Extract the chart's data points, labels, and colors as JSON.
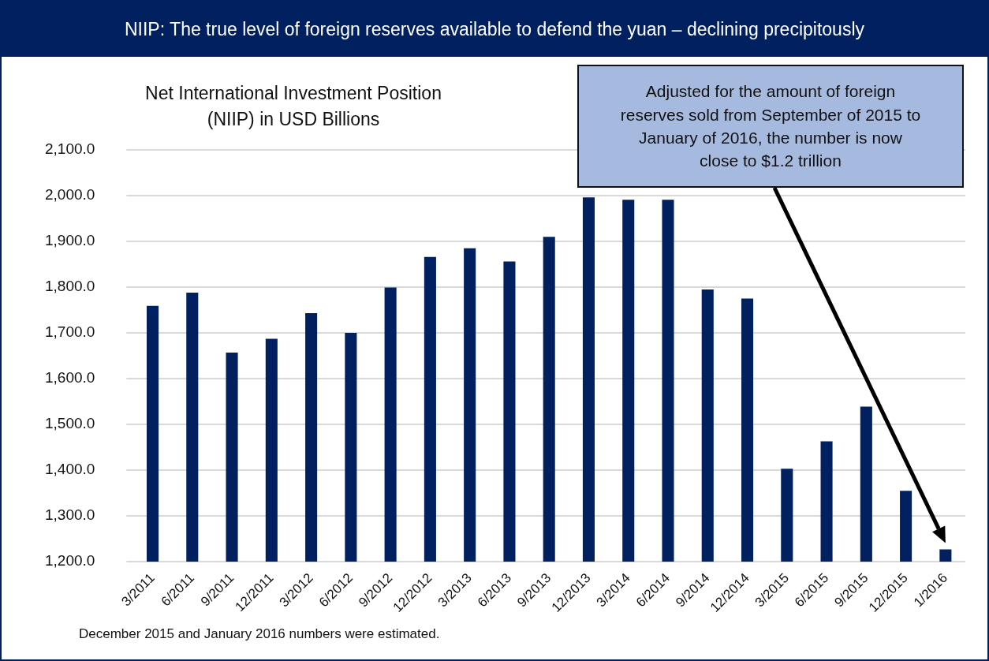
{
  "chart_data": {
    "type": "bar",
    "title": "NIIP: The true level of foreign reserves available to defend the yuan – declining precipitously",
    "subtitle": "Net International Investment Position (NIIP) in USD Billions",
    "categories": [
      "3/2011",
      "6/2011",
      "9/2011",
      "12/2011",
      "3/2012",
      "6/2012",
      "9/2012",
      "12/2012",
      "3/2013",
      "6/2013",
      "9/2013",
      "12/2013",
      "3/2014",
      "6/2014",
      "9/2014",
      "12/2014",
      "3/2015",
      "6/2015",
      "9/2015",
      "12/2015",
      "1/2016"
    ],
    "values": [
      1759,
      1788,
      1657,
      1687,
      1743,
      1700,
      1799,
      1866,
      1885,
      1856,
      1910,
      1996,
      1991,
      1991,
      1795,
      1775,
      1403,
      1463,
      1539,
      1355,
      1227
    ],
    "color": "#002060",
    "ylim": [
      1200,
      2100
    ],
    "yticks": [
      {
        "value": 1200,
        "label": "1,200.0"
      },
      {
        "value": 1300,
        "label": "1,300.0"
      },
      {
        "value": 1400,
        "label": "1,400.0"
      },
      {
        "value": 1500,
        "label": "1,500.0"
      },
      {
        "value": 1600,
        "label": "1,600.0"
      },
      {
        "value": 1700,
        "label": "1,700.0"
      },
      {
        "value": 1800,
        "label": "1,800.0"
      },
      {
        "value": 1900,
        "label": "1,900.0"
      },
      {
        "value": 2000,
        "label": "2,000.0"
      },
      {
        "value": 2100,
        "label": "2,100.0"
      }
    ],
    "grid": "y",
    "annotations": [
      "Adjusted for the amount of foreign reserves sold from September of 2015 to January of 2016, the number is now close to $1.2 trillion",
      "December 2015 and January 2016 numbers were estimated."
    ]
  }
}
